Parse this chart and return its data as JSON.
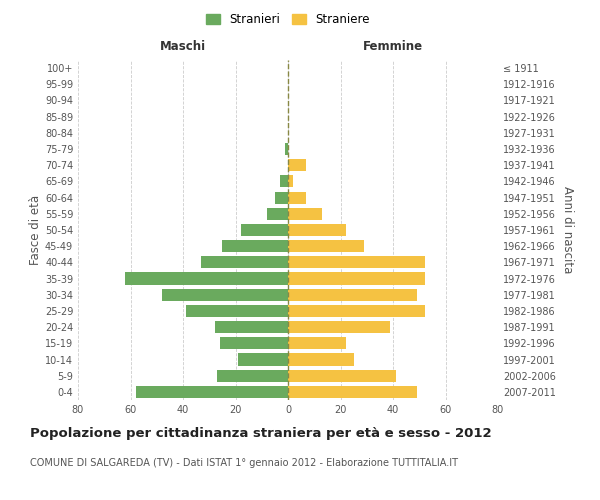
{
  "age_groups": [
    "0-4",
    "5-9",
    "10-14",
    "15-19",
    "20-24",
    "25-29",
    "30-34",
    "35-39",
    "40-44",
    "45-49",
    "50-54",
    "55-59",
    "60-64",
    "65-69",
    "70-74",
    "75-79",
    "80-84",
    "85-89",
    "90-94",
    "95-99",
    "100+"
  ],
  "birth_years": [
    "2007-2011",
    "2002-2006",
    "1997-2001",
    "1992-1996",
    "1987-1991",
    "1982-1986",
    "1977-1981",
    "1972-1976",
    "1967-1971",
    "1962-1966",
    "1957-1961",
    "1952-1956",
    "1947-1951",
    "1942-1946",
    "1937-1941",
    "1932-1936",
    "1927-1931",
    "1922-1926",
    "1917-1921",
    "1912-1916",
    "≤ 1911"
  ],
  "maschi": [
    58,
    27,
    19,
    26,
    28,
    39,
    48,
    62,
    33,
    25,
    18,
    8,
    5,
    3,
    0,
    1,
    0,
    0,
    0,
    0,
    0
  ],
  "femmine": [
    49,
    41,
    25,
    22,
    39,
    52,
    49,
    52,
    52,
    29,
    22,
    13,
    7,
    2,
    7,
    0,
    0,
    0,
    0,
    0,
    0
  ],
  "maschi_color": "#6aaa5e",
  "femmine_color": "#f5c242",
  "bg_color": "#ffffff",
  "grid_color": "#cccccc",
  "dashed_line_color": "#888844",
  "title": "Popolazione per cittadinanza straniera per età e sesso - 2012",
  "subtitle": "COMUNE DI SALGAREDA (TV) - Dati ISTAT 1° gennaio 2012 - Elaborazione TUTTITALIA.IT",
  "legend_maschi": "Stranieri",
  "legend_femmine": "Straniere",
  "xlabel_left": "Maschi",
  "xlabel_right": "Femmine",
  "ylabel_left": "Fasce di età",
  "ylabel_right": "Anni di nascita",
  "xlim": 80,
  "title_fontsize": 9.5,
  "subtitle_fontsize": 7,
  "axis_label_fontsize": 8.5,
  "tick_fontsize": 7
}
